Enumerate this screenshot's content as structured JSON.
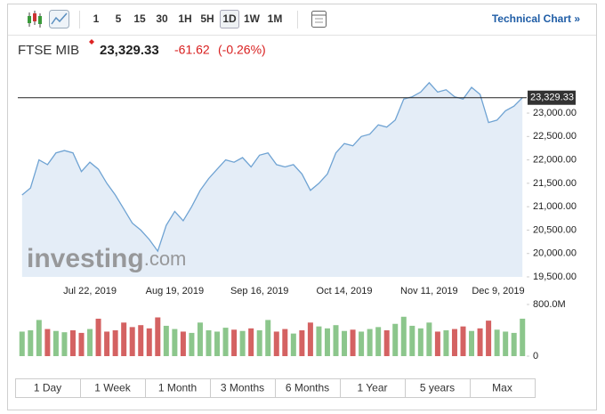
{
  "toolbar": {
    "intervals": [
      "1",
      "5",
      "15",
      "30",
      "1H",
      "5H",
      "1D",
      "1W",
      "1M"
    ],
    "active_interval": "1D",
    "link": "Technical Chart »"
  },
  "header": {
    "name": "FTSE MIB",
    "price": "23,329.33",
    "change": "-61.62",
    "change_percent": "(-0.26%)"
  },
  "watermark": {
    "brand": "investing",
    "suffix": ".com"
  },
  "range_buttons": [
    "1 Day",
    "1 Week",
    "1 Month",
    "3 Months",
    "6 Months",
    "1 Year",
    "5 years",
    "Max"
  ],
  "chart_data": [
    {
      "type": "area",
      "line_color": "#6fa3d3",
      "fill_color": "#e4edf7",
      "categories": [
        null,
        null,
        null,
        null,
        null,
        null,
        null,
        null,
        "Jul 22, 2019",
        null,
        null,
        null,
        null,
        null,
        null,
        null,
        null,
        null,
        "Aug 19, 2019",
        null,
        null,
        null,
        null,
        null,
        null,
        null,
        null,
        null,
        "Sep 16, 2019",
        null,
        null,
        null,
        null,
        null,
        null,
        null,
        null,
        null,
        "Oct 14, 2019",
        null,
        null,
        null,
        null,
        null,
        null,
        null,
        null,
        null,
        "Nov 11, 2019",
        null,
        null,
        null,
        null,
        null,
        null,
        null,
        null,
        null,
        "Dec 9, 2019",
        null
      ],
      "values": [
        21250,
        21400,
        22000,
        21900,
        22150,
        22200,
        22150,
        21750,
        21950,
        21800,
        21500,
        21250,
        20950,
        20650,
        20500,
        20300,
        20050,
        20600,
        20900,
        20700,
        21000,
        21350,
        21600,
        21800,
        22000,
        21950,
        22050,
        21850,
        22100,
        22150,
        21900,
        21850,
        21900,
        21700,
        21350,
        21500,
        21700,
        22150,
        22350,
        22300,
        22500,
        22550,
        22750,
        22700,
        22850,
        23300,
        23350,
        23450,
        23650,
        23450,
        23500,
        23350,
        23300,
        23550,
        23400,
        22800,
        22850,
        23050,
        23150,
        23330
      ],
      "last": {
        "value": 23329.33,
        "label": "23,329.33"
      },
      "ylim": [
        19500,
        23800
      ],
      "yticks": [
        {
          "value": 19500,
          "label": "19,500.00"
        },
        {
          "value": 20000,
          "label": "20,000.00"
        },
        {
          "value": 20500,
          "label": "20,500.00"
        },
        {
          "value": 21000,
          "label": "21,000.00"
        },
        {
          "value": 21500,
          "label": "21,500.00"
        },
        {
          "value": 22000,
          "label": "22,000.00"
        },
        {
          "value": 22500,
          "label": "22,500.00"
        },
        {
          "value": 23000,
          "label": "23,000.00"
        }
      ],
      "grid": false
    },
    {
      "type": "bar",
      "up_color": "#8cc68c",
      "down_color": "#d46262",
      "values": [
        380,
        400,
        560,
        420,
        390,
        370,
        400,
        360,
        420,
        580,
        380,
        400,
        520,
        450,
        480,
        430,
        600,
        470,
        420,
        380,
        360,
        520,
        400,
        380,
        440,
        410,
        390,
        430,
        400,
        560,
        380,
        420,
        350,
        400,
        520,
        460,
        430,
        480,
        390,
        410,
        380,
        420,
        450,
        400,
        500,
        610,
        470,
        430,
        520,
        380,
        400,
        420,
        460,
        390,
        430,
        550,
        410,
        380,
        360,
        580
      ],
      "ylim": [
        0,
        800
      ],
      "yticks": [
        0,
        {
          "value": 800,
          "label": "800.0M"
        }
      ],
      "grid": false
    }
  ]
}
